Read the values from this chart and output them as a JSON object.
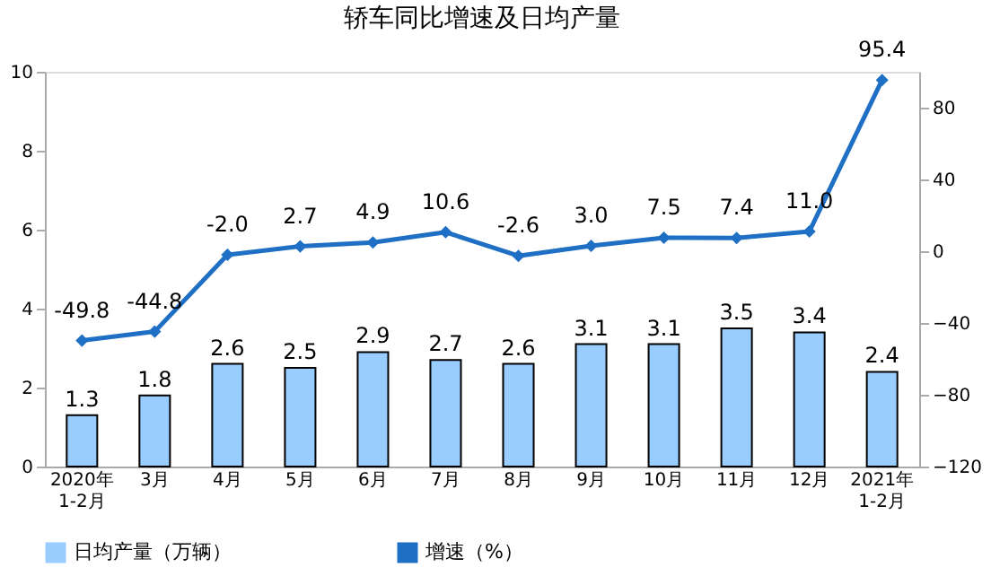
{
  "chart_data": {
    "type": "bar",
    "title": "轿车同比增速及日均产量",
    "categories": [
      "2020年\n1-2月",
      "3月",
      "4月",
      "5月",
      "6月",
      "7月",
      "8月",
      "9月",
      "10月",
      "11月",
      "12月",
      "2021年\n1-2月"
    ],
    "series": [
      {
        "name": "日均产量（万辆）",
        "color": "#99ccff",
        "values": [
          1.3,
          1.8,
          2.6,
          2.5,
          2.9,
          2.7,
          2.6,
          3.1,
          3.1,
          3.5,
          3.4,
          2.4
        ]
      },
      {
        "name": "增速（%）",
        "type": "line",
        "axis": "y2",
        "color": "#1f6fc5",
        "marker": "diamond",
        "values": [
          -49.8,
          -44.8,
          -2.0,
          2.7,
          4.9,
          10.6,
          -2.6,
          3.0,
          7.5,
          7.4,
          11.0,
          95.4
        ],
        "value_labels": [
          "-49.8",
          "-44.8",
          "-2.0",
          "2.7",
          "4.9",
          "10.6",
          "-2.6",
          "3.0",
          "7.5",
          "7.4",
          "11.0",
          "95.4"
        ]
      }
    ],
    "ylim": [
      0,
      10
    ],
    "yticks": [
      0,
      2,
      4,
      6,
      8,
      10
    ],
    "y2lim": [
      -120,
      100
    ],
    "y2ticks": [
      -120,
      -80,
      -40,
      0,
      40,
      80
    ],
    "data_labels": true,
    "legend": "bottom",
    "grid": false
  }
}
